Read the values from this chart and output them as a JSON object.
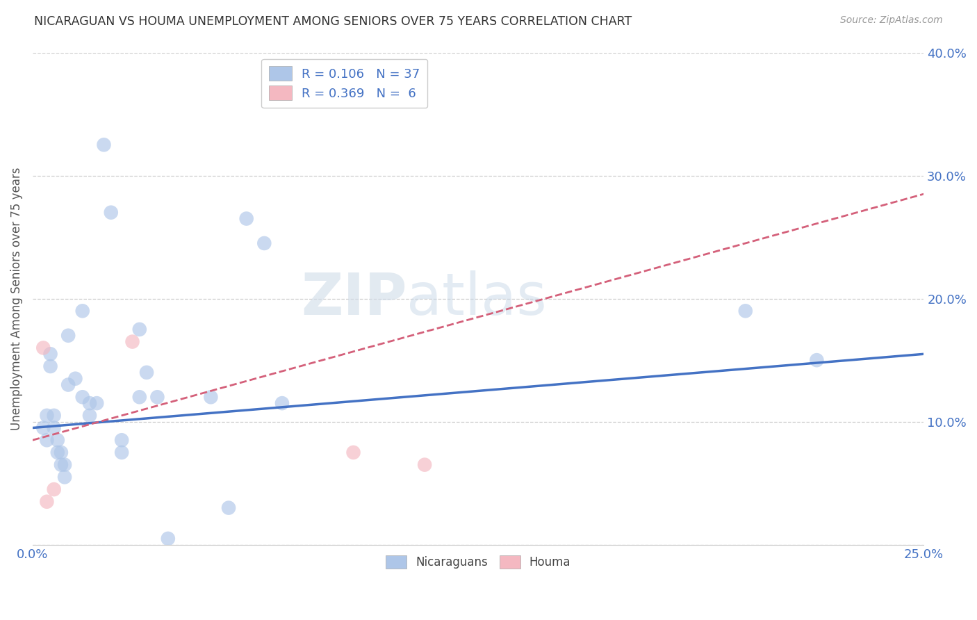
{
  "title": "NICARAGUAN VS HOUMA UNEMPLOYMENT AMONG SENIORS OVER 75 YEARS CORRELATION CHART",
  "source": "Source: ZipAtlas.com",
  "ylabel": "Unemployment Among Seniors over 75 years",
  "xlim": [
    0.0,
    0.25
  ],
  "ylim": [
    0.0,
    0.4
  ],
  "xticks": [
    0.0,
    0.05,
    0.1,
    0.15,
    0.2,
    0.25
  ],
  "yticks": [
    0.0,
    0.1,
    0.2,
    0.3,
    0.4
  ],
  "blue_scatter": [
    [
      0.003,
      0.095
    ],
    [
      0.004,
      0.085
    ],
    [
      0.004,
      0.105
    ],
    [
      0.005,
      0.155
    ],
    [
      0.005,
      0.145
    ],
    [
      0.006,
      0.105
    ],
    [
      0.006,
      0.095
    ],
    [
      0.007,
      0.085
    ],
    [
      0.007,
      0.075
    ],
    [
      0.008,
      0.065
    ],
    [
      0.008,
      0.075
    ],
    [
      0.009,
      0.065
    ],
    [
      0.009,
      0.055
    ],
    [
      0.01,
      0.17
    ],
    [
      0.01,
      0.13
    ],
    [
      0.012,
      0.135
    ],
    [
      0.014,
      0.19
    ],
    [
      0.014,
      0.12
    ],
    [
      0.016,
      0.115
    ],
    [
      0.016,
      0.105
    ],
    [
      0.018,
      0.115
    ],
    [
      0.02,
      0.325
    ],
    [
      0.022,
      0.27
    ],
    [
      0.025,
      0.085
    ],
    [
      0.025,
      0.075
    ],
    [
      0.03,
      0.12
    ],
    [
      0.03,
      0.175
    ],
    [
      0.032,
      0.14
    ],
    [
      0.035,
      0.12
    ],
    [
      0.038,
      0.005
    ],
    [
      0.05,
      0.12
    ],
    [
      0.055,
      0.03
    ],
    [
      0.06,
      0.265
    ],
    [
      0.065,
      0.245
    ],
    [
      0.07,
      0.115
    ],
    [
      0.2,
      0.19
    ],
    [
      0.22,
      0.15
    ]
  ],
  "pink_scatter": [
    [
      0.003,
      0.16
    ],
    [
      0.004,
      0.035
    ],
    [
      0.006,
      0.045
    ],
    [
      0.028,
      0.165
    ],
    [
      0.09,
      0.075
    ],
    [
      0.11,
      0.065
    ]
  ],
  "blue_line": {
    "x0": 0.0,
    "y0": 0.095,
    "x1": 0.25,
    "y1": 0.155
  },
  "pink_line": {
    "x0": 0.0,
    "y0": 0.085,
    "x1": 0.25,
    "y1": 0.285
  },
  "blue_line_color": "#4472c4",
  "pink_line_color": "#d4607a",
  "blue_scatter_color": "#aec6e8",
  "pink_scatter_color": "#f4b8c1",
  "watermark_zip": "ZIP",
  "watermark_atlas": "atlas",
  "background_color": "#ffffff",
  "grid_color": "#c8c8c8",
  "legend_blue_label": "R = 0.106   N = 37",
  "legend_pink_label": "R = 0.369   N =  6",
  "bottom_legend_blue": "Nicaraguans",
  "bottom_legend_pink": "Houma"
}
